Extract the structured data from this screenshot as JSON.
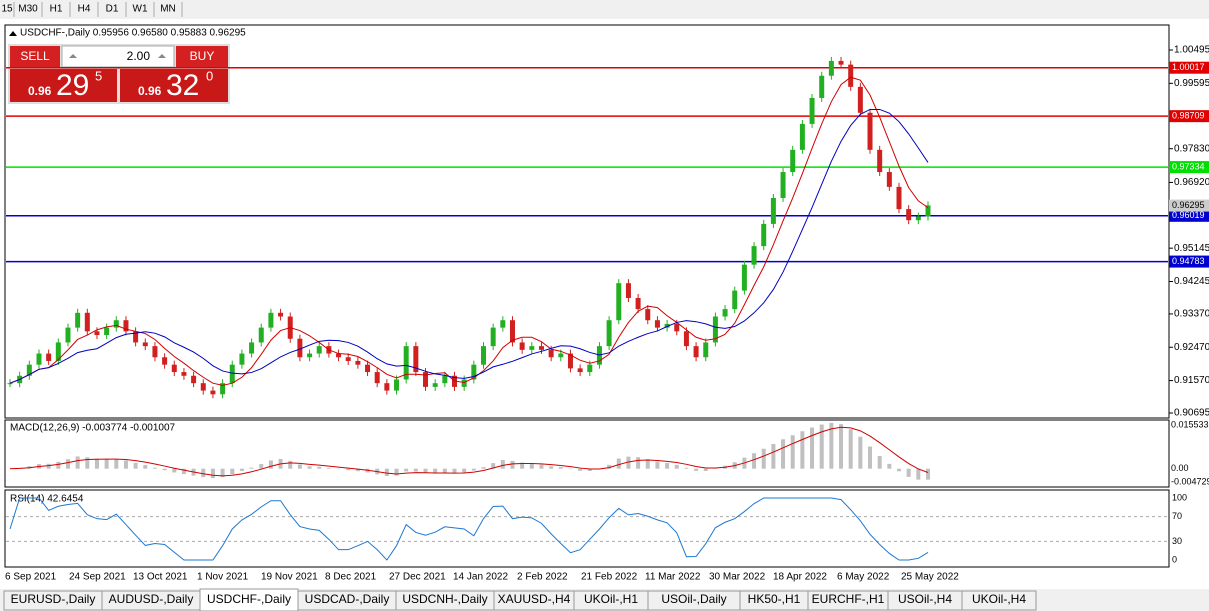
{
  "toolbar": {
    "timeframes": [
      "15",
      "M30",
      "H1",
      "H4",
      "D1",
      "W1",
      "MN"
    ]
  },
  "chart": {
    "title": "USDCHF-,Daily 0.95956 0.96580 0.95883 0.96295",
    "price_ticks": [
      {
        "value": 1.00495,
        "label": "1.00495"
      },
      {
        "value": 0.99595,
        "label": "0.99595"
      },
      {
        "value": 0.9783,
        "label": "0.97830"
      },
      {
        "value": 0.9692,
        "label": "0.96920"
      },
      {
        "value": 0.95145,
        "label": "0.95145"
      },
      {
        "value": 0.94245,
        "label": "0.94245"
      },
      {
        "value": 0.9337,
        "label": "0.93370"
      },
      {
        "value": 0.9247,
        "label": "0.92470"
      },
      {
        "value": 0.9157,
        "label": "0.91570"
      },
      {
        "value": 0.90695,
        "label": "0.90695"
      }
    ],
    "current": 0.96295,
    "levels": [
      {
        "value": 1.00017,
        "color": "#e00000"
      },
      {
        "value": 0.98709,
        "color": "#e00000"
      },
      {
        "value": 0.97334,
        "color": "#00e000"
      },
      {
        "value": 0.96019,
        "color": "#0000d0"
      },
      {
        "value": 0.94783,
        "color": "#0000d0"
      }
    ],
    "closes": [
      0.915,
      0.917,
      0.92,
      0.923,
      0.921,
      0.926,
      0.93,
      0.934,
      0.929,
      0.928,
      0.93,
      0.932,
      0.929,
      0.926,
      0.925,
      0.922,
      0.92,
      0.918,
      0.917,
      0.915,
      0.913,
      0.912,
      0.915,
      0.92,
      0.923,
      0.926,
      0.93,
      0.934,
      0.933,
      0.927,
      0.922,
      0.923,
      0.925,
      0.923,
      0.922,
      0.921,
      0.92,
      0.918,
      0.915,
      0.913,
      0.916,
      0.925,
      0.918,
      0.914,
      0.915,
      0.917,
      0.914,
      0.916,
      0.92,
      0.925,
      0.93,
      0.932,
      0.926,
      0.924,
      0.925,
      0.924,
      0.922,
      0.923,
      0.919,
      0.918,
      0.92,
      0.925,
      0.932,
      0.942,
      0.938,
      0.935,
      0.932,
      0.93,
      0.931,
      0.929,
      0.925,
      0.922,
      0.926,
      0.933,
      0.935,
      0.94,
      0.947,
      0.952,
      0.958,
      0.965,
      0.972,
      0.978,
      0.985,
      0.992,
      0.998,
      1.002,
      1.001,
      0.995,
      0.988,
      0.978,
      0.972,
      0.968,
      0.962,
      0.959,
      0.96,
      0.963
    ],
    "dates": [
      "6 Sep 2021",
      "24 Sep 2021",
      "13 Oct 2021",
      "1 Nov 2021",
      "19 Nov 2021",
      "8 Dec 2021",
      "27 Dec 2021",
      "14 Jan 2022",
      "2 Feb 2022",
      "21 Feb 2022",
      "11 Mar 2022",
      "30 Mar 2022",
      "18 Apr 2022",
      "6 May 2022",
      "25 May 2022"
    ]
  },
  "trade_panel": {
    "sell": "SELL",
    "buy": "BUY",
    "volume": "2.00",
    "bid_big": "0.96",
    "bid_pips": "29",
    "bid_frac": "5",
    "ask_big": "0.96",
    "ask_pips": "32",
    "ask_frac": "0"
  },
  "macd": {
    "label": "MACD(12,26,9) -0.003774 -0.001007",
    "ticks": [
      {
        "value": 0.015533,
        "label": "0.015533"
      },
      {
        "value": 0,
        "label": "0.00"
      },
      {
        "value": -0.004729,
        "label": "-0.004729"
      }
    ]
  },
  "rsi": {
    "label": "RSI(14) 42.6454",
    "ticks": [
      100,
      70,
      30,
      0
    ]
  },
  "tabs": [
    "EURUSD-,Daily",
    "AUDUSD-,Daily",
    "USDCHF-,Daily",
    "USDCAD-,Daily",
    "USDCNH-,Daily",
    "XAUUSD-,H4",
    "UKOil-,H1",
    "USOil-,Daily",
    "HK50-,H1",
    "EURCHF-,H1",
    "USOil-,H4",
    "UKOil-,H4"
  ]
}
